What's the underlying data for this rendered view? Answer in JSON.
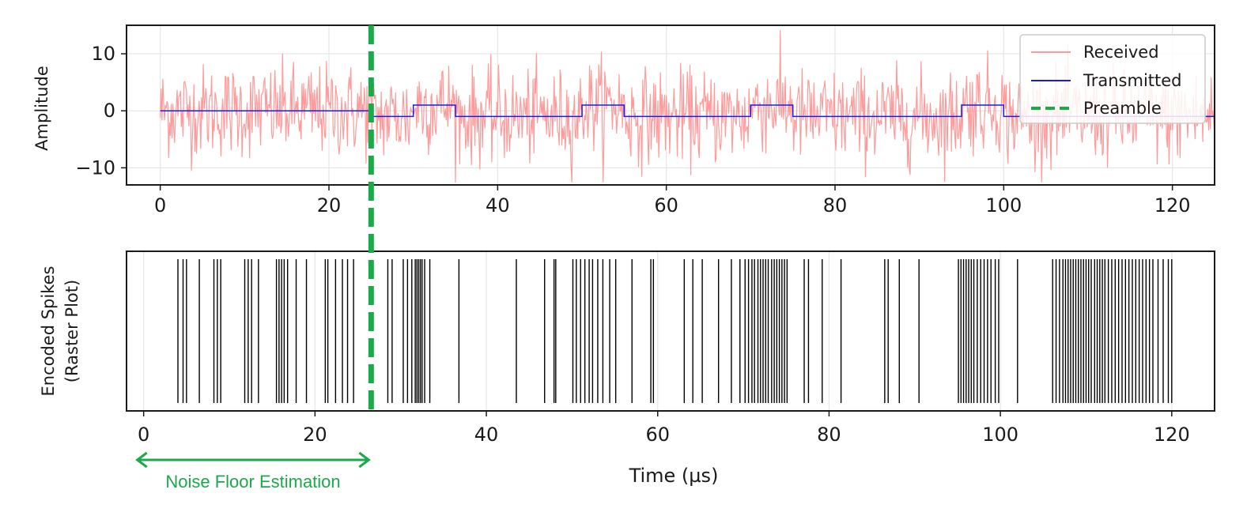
{
  "chart_data": [
    {
      "type": "line",
      "ylabel": "Amplitude",
      "xlim": [
        -4,
        125
      ],
      "ylim": [
        -13,
        15
      ],
      "xticks": [
        0,
        20,
        40,
        60,
        80,
        100,
        120
      ],
      "yticks": [
        -10,
        0,
        10
      ],
      "xtick_labels": [
        "0",
        "20",
        "40",
        "60",
        "80",
        "100",
        "120"
      ],
      "ytick_labels": [
        "−10",
        "0",
        "10"
      ],
      "grid": true,
      "legend_position": "top-right",
      "series": [
        {
          "name": "Received",
          "color": "#ff9a9a",
          "style": "noisy line",
          "noise_amplitude_approx": 5
        },
        {
          "name": "Transmitted",
          "color": "#1a1aee",
          "steps": [
            {
              "x_start": 0,
              "x_end": 25,
              "y": 0
            },
            {
              "x_start": 25,
              "x_end": 30,
              "y": -1
            },
            {
              "x_start": 30,
              "x_end": 35,
              "y": 1
            },
            {
              "x_start": 35,
              "x_end": 50,
              "y": -1
            },
            {
              "x_start": 50,
              "x_end": 55,
              "y": 1
            },
            {
              "x_start": 55,
              "x_end": 70,
              "y": -1
            },
            {
              "x_start": 70,
              "x_end": 75,
              "y": 1
            },
            {
              "x_start": 75,
              "x_end": 95,
              "y": -1
            },
            {
              "x_start": 95,
              "x_end": 100,
              "y": 1
            },
            {
              "x_start": 100,
              "x_end": 125,
              "y": -1
            }
          ]
        },
        {
          "name": "Preamble",
          "color": "#1aaa4a",
          "style": "dashed vertical",
          "x": 25
        }
      ]
    },
    {
      "type": "scatter",
      "subtype": "raster",
      "ylabel": "Encoded Spikes\n(Raster Plot)",
      "xlabel": "Time (µs)",
      "xlim": [
        -2,
        125
      ],
      "xticks": [
        0,
        20,
        40,
        60,
        80,
        100,
        120
      ],
      "xtick_labels": [
        "0",
        "20",
        "40",
        "60",
        "80",
        "100",
        "120"
      ],
      "grid": true,
      "spike_times": [
        4.0,
        4.6,
        5.0,
        6.5,
        8.2,
        8.6,
        9.0,
        11.8,
        12.2,
        12.6,
        13.4,
        15.5,
        15.8,
        16.1,
        16.4,
        16.8,
        17.8,
        19.0,
        21.2,
        21.5,
        22.4,
        23.2,
        23.8,
        24.5,
        28.5,
        29.0,
        30.3,
        30.8,
        31.3,
        31.7,
        31.9,
        32.1,
        32.3,
        32.5,
        32.8,
        33.4,
        36.8,
        43.5,
        46.8,
        47.9,
        48.1,
        50.1,
        50.5,
        51.0,
        51.5,
        52.0,
        52.4,
        53.0,
        53.6,
        54.4,
        55.1,
        57.0,
        59.2,
        59.5,
        63.1,
        64.1,
        65.2,
        67.1,
        68.6,
        69.6,
        70.2,
        70.6,
        71.0,
        71.3,
        71.7,
        72.0,
        72.3,
        72.6,
        72.9,
        73.3,
        73.6,
        73.9,
        74.2,
        74.5,
        74.8,
        75.1,
        77.1,
        77.6,
        79.2,
        81.4,
        86.5,
        86.9,
        88.2,
        90.5,
        95.1,
        95.4,
        95.7,
        96.0,
        96.3,
        96.6,
        96.9,
        97.3,
        97.7,
        98.1,
        98.5,
        98.9,
        99.4,
        99.8,
        102.0,
        106.1,
        106.5,
        106.9,
        107.3,
        107.6,
        107.9,
        108.2,
        108.5,
        108.8,
        109.1,
        109.4,
        109.7,
        110.0,
        110.3,
        110.6,
        111.0,
        111.3,
        111.6,
        111.9,
        112.2,
        112.6,
        113.0,
        113.4,
        113.8,
        114.2,
        114.6,
        115.0,
        115.4,
        115.8,
        116.2,
        116.6,
        117.0,
        117.4,
        117.8,
        118.4,
        119.0,
        119.6,
        120.0
      ],
      "spike_color": "#000000"
    }
  ],
  "annotation": {
    "text": "Noise Floor Estimation",
    "x_start": 0,
    "x_end": 25,
    "color": "#1aaa4a"
  }
}
